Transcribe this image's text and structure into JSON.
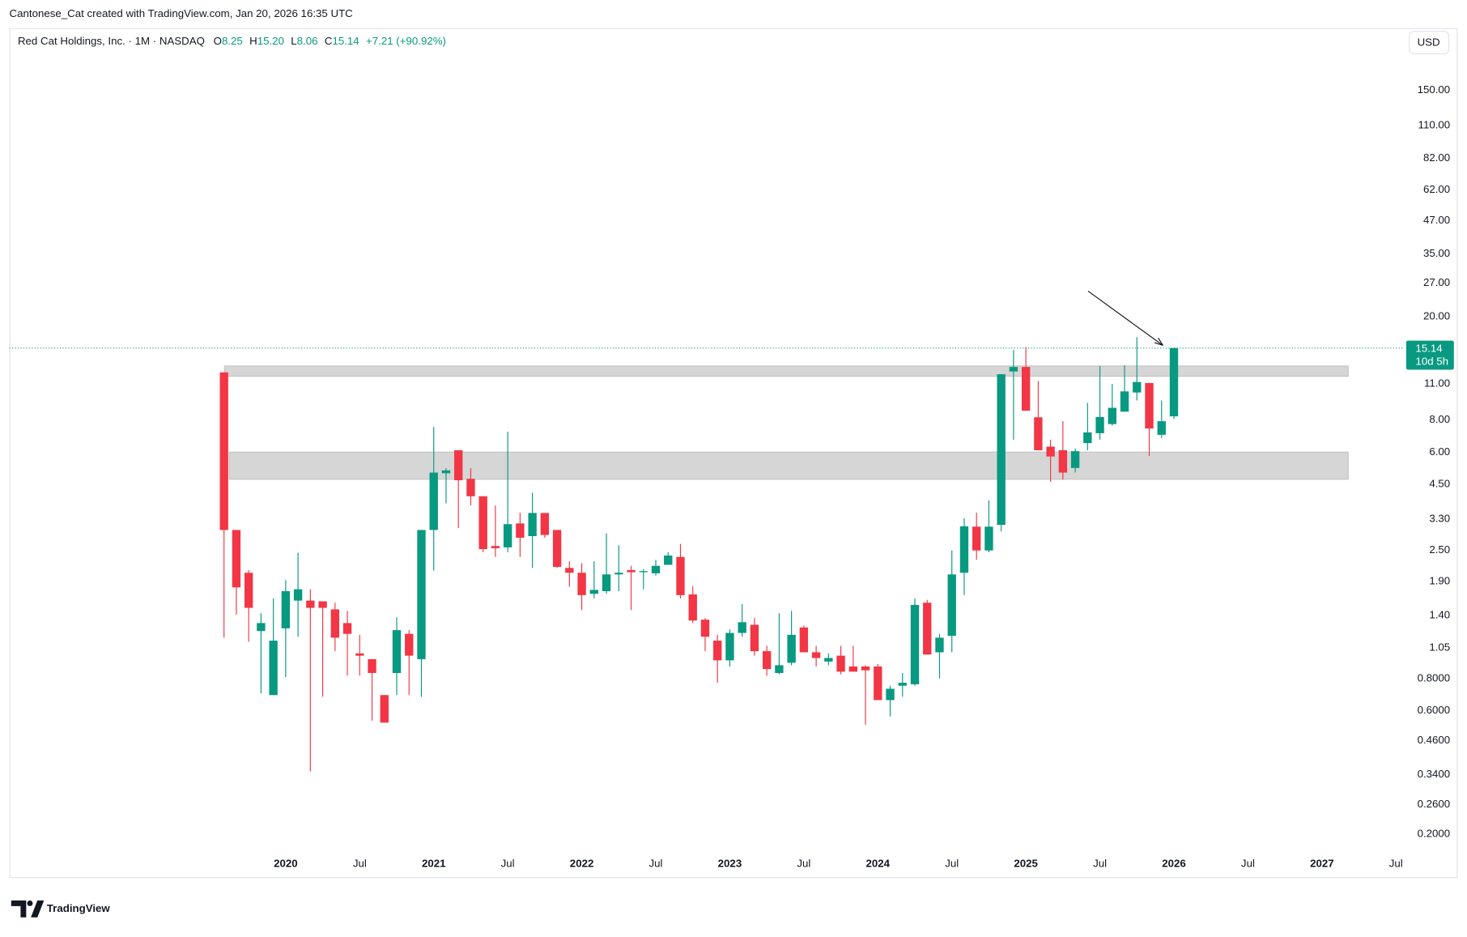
{
  "header": "Cantonese_Cat created with TradingView.com, Jan 20, 2026 16:35 UTC",
  "legend": {
    "name": "Red Cat Holdings, Inc. · 1M · NASDAQ",
    "items": [
      {
        "label": "O",
        "value": "8.25"
      },
      {
        "label": "H",
        "value": "15.20"
      },
      {
        "label": "L",
        "value": "8.06"
      },
      {
        "label": "C",
        "value": "15.14"
      }
    ],
    "change": "+7.21 (+90.92%)"
  },
  "currency": "USD",
  "countdown": "10d 5h",
  "logo": "TradingView",
  "chart_data": {
    "type": "candlestick",
    "log_scale": true,
    "up_color": "#089981",
    "down_color": "#f23645",
    "x": [
      0,
      1,
      2,
      3,
      4,
      5,
      6,
      7,
      8,
      9,
      10,
      11,
      12,
      13,
      14,
      15,
      16,
      17,
      18,
      19,
      20,
      21,
      22,
      23,
      24,
      25,
      26,
      27,
      28,
      29,
      30,
      31,
      32,
      33,
      34,
      35,
      36,
      37,
      38,
      39,
      40,
      41,
      42,
      43,
      44,
      45,
      46,
      47,
      48,
      49,
      50,
      51,
      52,
      53,
      54,
      55,
      56,
      57,
      58,
      59,
      60,
      61,
      62,
      63,
      64,
      65,
      66,
      67,
      68,
      69,
      70,
      71,
      72,
      73,
      74,
      75,
      76,
      77
    ],
    "open": [
      12.2,
      3.0,
      2.05,
      1.22,
      0.69,
      1.25,
      1.6,
      1.6,
      1.59,
      1.48,
      1.31,
      1.0,
      0.95,
      0.69,
      0.84,
      1.19,
      0.95,
      3.0,
      4.97,
      6.1,
      4.73,
      4.05,
      2.6,
      2.57,
      3.18,
      2.84,
      3.49,
      3.0,
      2.14,
      2.05,
      1.7,
      1.74,
      2.02,
      2.1,
      2.06,
      2.04,
      2.2,
      2.36,
      1.69,
      1.35,
      1.12,
      0.94,
      1.2,
      1.29,
      1.02,
      0.84,
      0.92,
      1.26,
      1.01,
      0.93,
      0.98,
      0.89,
      0.89,
      0.89,
      0.66,
      0.75,
      0.76,
      1.57,
      1.01,
      1.17,
      2.05,
      3.09,
      2.5,
      3.14,
      12.3,
      12.8,
      8.18,
      6.3,
      6.1,
      5.21,
      6.5,
      7.1,
      7.7,
      8.6,
      10.2,
      11.1,
      7.0,
      8.25
    ],
    "high": [
      12.2,
      3.0,
      2.1,
      1.43,
      1.63,
      1.92,
      2.45,
      1.77,
      1.59,
      1.57,
      1.46,
      1.18,
      0.95,
      0.69,
      1.38,
      1.23,
      3.0,
      7.5,
      5.2,
      6.1,
      5.2,
      4.05,
      3.73,
      7.2,
      3.5,
      4.18,
      3.49,
      3.0,
      2.27,
      2.23,
      2.27,
      2.91,
      2.62,
      2.18,
      2.12,
      2.3,
      2.46,
      2.65,
      1.82,
      1.37,
      1.18,
      1.24,
      1.55,
      1.37,
      1.07,
      1.43,
      1.46,
      1.28,
      1.07,
      1.0,
      1.07,
      1.07,
      0.9,
      0.91,
      0.75,
      0.84,
      1.63,
      1.61,
      1.19,
      2.5,
      3.33,
      3.5,
      3.9,
      12.0,
      14.9,
      15.3,
      11.3,
      6.7,
      7.9,
      6.2,
      9.3,
      12.9,
      11.0,
      13.0,
      16.7,
      11.1,
      9.5,
      15.2
    ],
    "low": [
      1.15,
      1.41,
      1.11,
      0.7,
      0.69,
      0.81,
      1.16,
      0.35,
      0.68,
      1.02,
      0.82,
      0.82,
      0.55,
      0.54,
      0.69,
      0.69,
      0.68,
      2.09,
      3.8,
      3.05,
      3.73,
      2.46,
      2.36,
      2.46,
      2.36,
      2.14,
      2.8,
      2.14,
      1.81,
      1.47,
      1.63,
      1.7,
      1.74,
      1.47,
      1.77,
      2.0,
      2.2,
      1.63,
      1.31,
      1.02,
      0.77,
      0.89,
      1.16,
      0.98,
      0.82,
      0.83,
      0.9,
      1.01,
      0.89,
      0.9,
      0.83,
      0.85,
      0.53,
      0.66,
      0.57,
      0.68,
      0.75,
      0.99,
      0.8,
      1.01,
      1.68,
      2.3,
      2.46,
      2.96,
      6.7,
      8.7,
      6.1,
      4.6,
      4.7,
      5.0,
      6.1,
      6.7,
      7.6,
      8.6,
      9.5,
      5.8,
      6.8,
      8.06
    ],
    "close": [
      3.0,
      1.8,
      1.5,
      1.31,
      1.12,
      1.74,
      1.77,
      1.5,
      1.5,
      1.15,
      1.19,
      0.98,
      0.84,
      0.54,
      1.23,
      0.98,
      3.0,
      5.0,
      5.1,
      4.67,
      4.05,
      2.53,
      2.55,
      3.16,
      2.8,
      3.49,
      2.87,
      2.16,
      2.05,
      1.68,
      1.76,
      2.02,
      2.05,
      2.06,
      2.08,
      2.18,
      2.39,
      1.68,
      1.34,
      1.16,
      0.94,
      1.2,
      1.32,
      1.02,
      0.87,
      0.9,
      1.18,
      1.01,
      0.96,
      0.96,
      0.85,
      0.85,
      0.86,
      0.66,
      0.73,
      0.77,
      1.54,
      0.99,
      1.15,
      2.02,
      3.1,
      2.5,
      3.09,
      12.0,
      12.8,
      8.67,
      6.1,
      5.77,
      5.0,
      6.05,
      7.15,
      8.2,
      8.9,
      10.3,
      11.2,
      7.4,
      7.9,
      15.14
    ],
    "xlim": [
      -17.4,
      95.6
    ],
    "xticks": [
      {
        "value": 5,
        "label": "2020"
      },
      {
        "value": 11,
        "label": "Jul"
      },
      {
        "value": 17,
        "label": "2021"
      },
      {
        "value": 23,
        "label": "Jul"
      },
      {
        "value": 29,
        "label": "2022"
      },
      {
        "value": 35,
        "label": "Jul"
      },
      {
        "value": 41,
        "label": "2023"
      },
      {
        "value": 47,
        "label": "Jul"
      },
      {
        "value": 53,
        "label": "2024"
      },
      {
        "value": 59,
        "label": "Jul"
      },
      {
        "value": 65,
        "label": "2025"
      },
      {
        "value": 71,
        "label": "Jul"
      },
      {
        "value": 77,
        "label": "2026"
      },
      {
        "value": 83,
        "label": "Jul"
      },
      {
        "value": 89,
        "label": "2027"
      },
      {
        "value": 95,
        "label": "Jul"
      }
    ],
    "ylim": [
      0.171,
      207
    ],
    "yticks": [
      {
        "value": 150,
        "label": "150.00"
      },
      {
        "value": 110,
        "label": "110.00"
      },
      {
        "value": 82,
        "label": "82.00"
      },
      {
        "value": 62,
        "label": "62.00"
      },
      {
        "value": 47,
        "label": "47.00"
      },
      {
        "value": 35,
        "label": "35.00"
      },
      {
        "value": 27,
        "label": "27.00"
      },
      {
        "value": 20,
        "label": "20.00"
      },
      {
        "value": 11,
        "label": "11.00"
      },
      {
        "value": 8,
        "label": "8.00"
      },
      {
        "value": 6,
        "label": "6.00"
      },
      {
        "value": 4.5,
        "label": "4.50"
      },
      {
        "value": 3.3,
        "label": "3.30"
      },
      {
        "value": 2.5,
        "label": "2.50"
      },
      {
        "value": 1.9,
        "label": "1.90"
      },
      {
        "value": 1.4,
        "label": "1.40"
      },
      {
        "value": 1.05,
        "label": "1.05"
      },
      {
        "value": 0.8,
        "label": "0.8000"
      },
      {
        "value": 0.6,
        "label": "0.6000"
      },
      {
        "value": 0.46,
        "label": "0.4600"
      },
      {
        "value": 0.34,
        "label": "0.3400"
      },
      {
        "value": 0.26,
        "label": "0.2600"
      },
      {
        "value": 0.2,
        "label": "0.2000"
      }
    ]
  }
}
